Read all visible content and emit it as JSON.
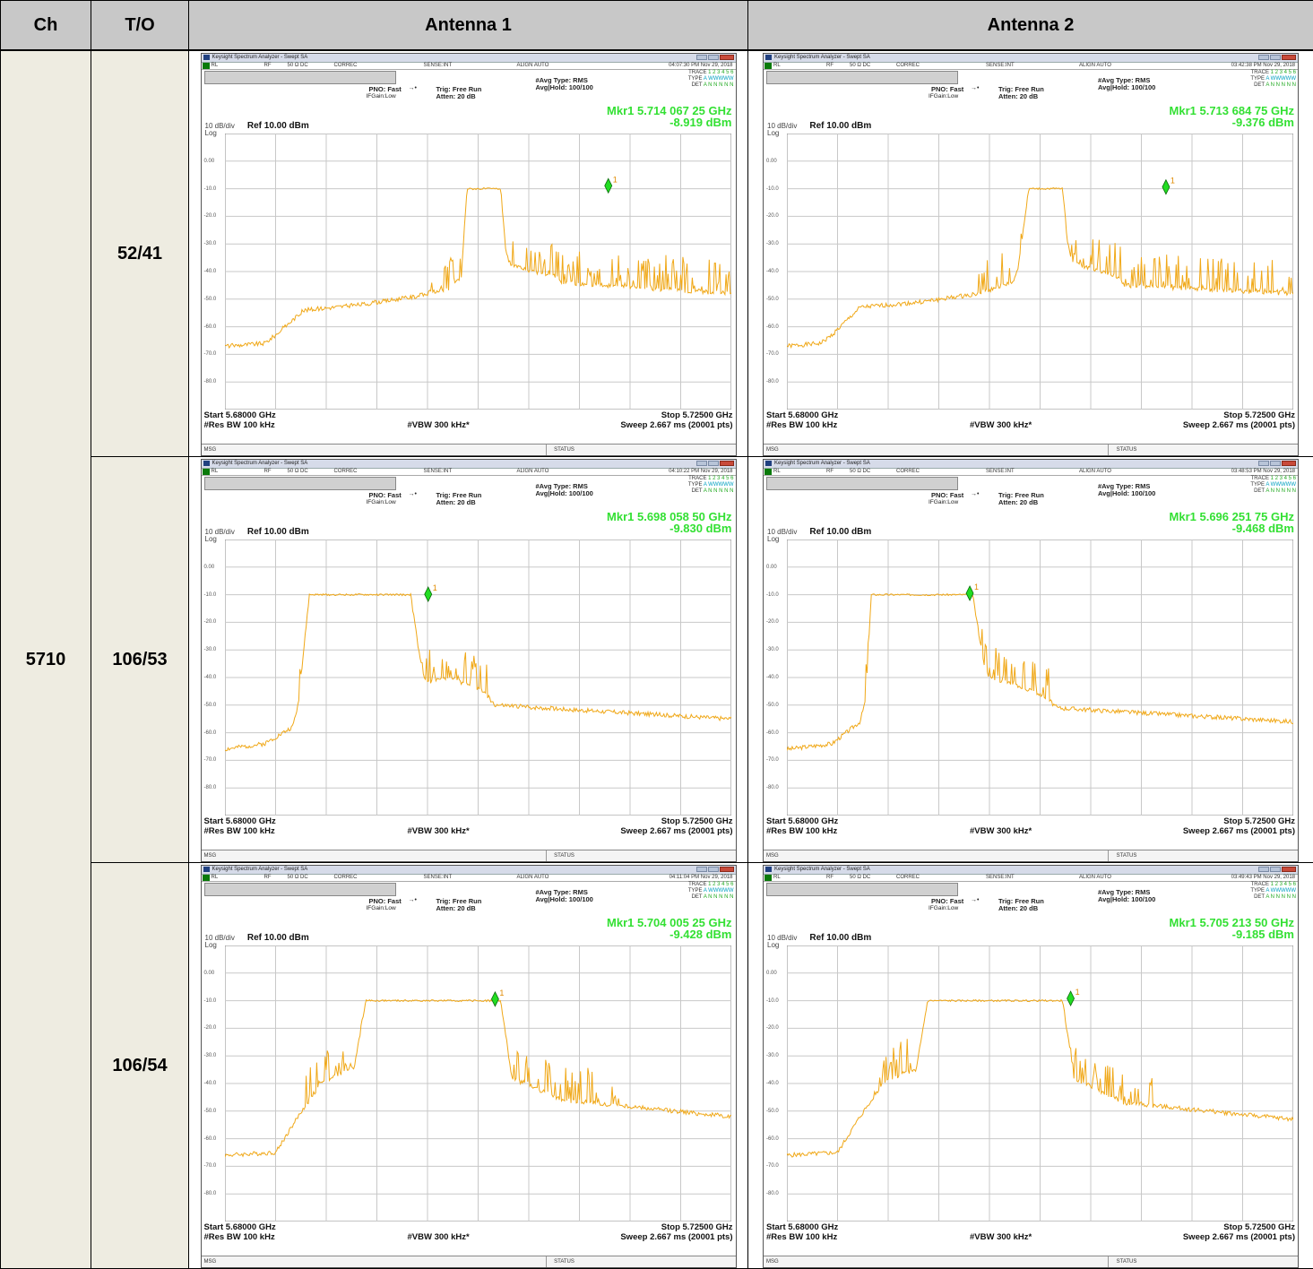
{
  "headers": {
    "ch": "Ch",
    "to": "T/O",
    "ant1": "Antenna 1",
    "ant2": "Antenna 2"
  },
  "channel": "5710",
  "common": {
    "window_title": "Keysight Spectrum Analyzer - Swept SA",
    "rl": "RL",
    "rf": "RF",
    "ohm": "50 Ω  DC",
    "correc": "CORREC",
    "sense": "SENSE:INT",
    "align": "ALIGN AUTO",
    "pno": "PNO: Fast",
    "ifgain": "IFGain:Low",
    "trig": "Trig: Free Run",
    "atten": "Atten: 20 dB",
    "avg_type": "#Avg Type: RMS",
    "avg_hold": "Avg|Hold: 100/100",
    "trace_label": "TRACE",
    "trace_nums": "1 2 3 4 5 6",
    "type_label": "TYPE",
    "type_val": "A WWWWW",
    "det_label": "DET",
    "det_val": "A N N N N N",
    "scale": "10 dB/div",
    "ref": "Ref 10.00 dBm",
    "log": "Log",
    "ylabels": [
      "0.00",
      "-10.0",
      "-20.0",
      "-30.0",
      "-40.0",
      "-50.0",
      "-60.0",
      "-70.0",
      "-80.0"
    ],
    "start": "Start 5.68000 GHz",
    "stop": "Stop 5.72500 GHz",
    "rbw": "#Res BW 100 kHz",
    "vbw": "#VBW 300 kHz*",
    "sweep": "Sweep  2.667 ms (20001 pts)",
    "msg": "MSG",
    "status": "STATUS",
    "marker_label": "1"
  },
  "colors": {
    "trace": "#f0a818",
    "marker": "#22dd22",
    "header_bg": "#c8c8c8",
    "label_bg": "#eeece1"
  },
  "rows": [
    {
      "to": "52/41",
      "ant1": {
        "time": "04:07:30 PM Nov 29, 2018",
        "mkr_freq": "Mkr1 5.714 067 25 GHz",
        "mkr_level": "-8.919 dBm"
      },
      "ant2": {
        "time": "03:42:38 PM Nov 29, 2018",
        "mkr_freq": "Mkr1 5.713 684 75 GHz",
        "mkr_level": "-9.376 dBm"
      }
    },
    {
      "to": "106/53",
      "ant1": {
        "time": "04:10:22 PM Nov 29, 2018",
        "mkr_freq": "Mkr1 5.698 058 50 GHz",
        "mkr_level": "-9.830 dBm"
      },
      "ant2": {
        "time": "03:48:53 PM Nov 29, 2018",
        "mkr_freq": "Mkr1 5.696 251 75 GHz",
        "mkr_level": "-9.468 dBm"
      }
    },
    {
      "to": "106/54",
      "ant1": {
        "time": "04:11:04 PM Nov 29, 2018",
        "mkr_freq": "Mkr1 5.704 005 25 GHz",
        "mkr_level": "-9.428 dBm"
      },
      "ant2": {
        "time": "03:49:43 PM Nov 29, 2018",
        "mkr_freq": "Mkr1 5.705 213 50 GHz",
        "mkr_level": "-9.185 dBm"
      }
    }
  ],
  "chart_data": [
    {
      "type": "line",
      "panel": "52/41 Antenna 1",
      "x_range": [
        5.68,
        5.725
      ],
      "ylim": [
        -90,
        10
      ],
      "grid": true,
      "x": [
        5.68,
        5.6835,
        5.6845,
        5.687,
        5.692,
        5.697,
        5.7,
        5.701,
        5.7015,
        5.7045,
        5.705,
        5.7055,
        5.7095,
        5.71,
        5.725
      ],
      "values": [
        -67,
        -66,
        -63,
        -54,
        -52,
        -49,
        -46,
        -42,
        -10,
        -10,
        -34,
        -38,
        -42,
        -44,
        -48
      ],
      "marker": {
        "x": 5.71406725,
        "y": -8.919
      }
    },
    {
      "type": "line",
      "panel": "52/41 Antenna 2",
      "x_range": [
        5.68,
        5.725
      ],
      "ylim": [
        -90,
        10
      ],
      "grid": true,
      "x": [
        5.68,
        5.683,
        5.684,
        5.6865,
        5.692,
        5.697,
        5.7,
        5.7005,
        5.7015,
        5.7045,
        5.705,
        5.7055,
        5.7095,
        5.71,
        5.725
      ],
      "values": [
        -67,
        -66,
        -63,
        -53,
        -51,
        -48,
        -44,
        -40,
        -10,
        -10,
        -32,
        -37,
        -42,
        -45,
        -48
      ],
      "marker": {
        "x": 5.71368475,
        "y": -9.376
      }
    },
    {
      "type": "line",
      "panel": "106/53 Antenna 1",
      "x_range": [
        5.68,
        5.725
      ],
      "ylim": [
        -90,
        10
      ],
      "grid": true,
      "x": [
        5.68,
        5.6835,
        5.686,
        5.6865,
        5.6875,
        5.6965,
        5.6975,
        5.698,
        5.7,
        5.703,
        5.704,
        5.725
      ],
      "values": [
        -66,
        -64,
        -58,
        -50,
        -10,
        -10,
        -38,
        -42,
        -40,
        -45,
        -50,
        -55
      ],
      "marker": {
        "x": 5.6980585,
        "y": -9.83
      }
    },
    {
      "type": "line",
      "panel": "106/53 Antenna 2",
      "x_range": [
        5.68,
        5.725
      ],
      "ylim": [
        -90,
        10
      ],
      "grid": true,
      "x": [
        5.68,
        5.684,
        5.6865,
        5.687,
        5.6875,
        5.6965,
        5.6975,
        5.698,
        5.7,
        5.703,
        5.704,
        5.725
      ],
      "values": [
        -66,
        -64,
        -56,
        -48,
        -10,
        -10,
        -35,
        -40,
        -42,
        -47,
        -51,
        -56
      ],
      "marker": {
        "x": 5.69625175,
        "y": -9.468
      }
    },
    {
      "type": "line",
      "panel": "106/54 Antenna 1",
      "x_range": [
        5.68,
        5.725
      ],
      "ylim": [
        -90,
        10
      ],
      "grid": true,
      "x": [
        5.68,
        5.6845,
        5.6865,
        5.6885,
        5.6905,
        5.6915,
        5.6925,
        5.6985,
        5.7045,
        5.7055,
        5.71,
        5.725
      ],
      "values": [
        -66,
        -65,
        -52,
        -40,
        -36,
        -34,
        -10,
        -10,
        -10,
        -38,
        -46,
        -52
      ],
      "marker": {
        "x": 5.70400525,
        "y": -9.428
      }
    },
    {
      "type": "line",
      "panel": "106/54 Antenna 2",
      "x_range": [
        5.68,
        5.725
      ],
      "ylim": [
        -90,
        10
      ],
      "grid": true,
      "x": [
        5.68,
        5.6845,
        5.6865,
        5.6885,
        5.6905,
        5.6915,
        5.6925,
        5.6985,
        5.7045,
        5.7055,
        5.71,
        5.725
      ],
      "values": [
        -66,
        -65,
        -52,
        -40,
        -36,
        -35,
        -10,
        -10,
        -10,
        -38,
        -47,
        -53
      ],
      "marker": {
        "x": 5.7052135,
        "y": -9.185
      }
    }
  ]
}
